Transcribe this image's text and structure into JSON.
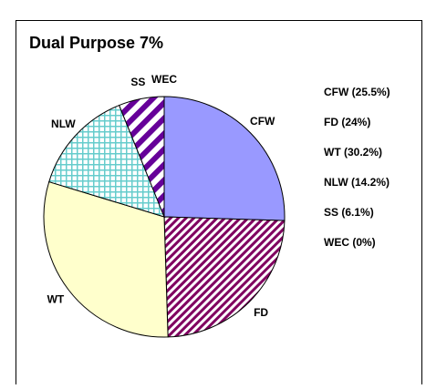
{
  "chart_data": {
    "type": "pie",
    "title": "Dual Purpose 7%",
    "categories": [
      "CFW",
      "FD",
      "WT",
      "NLW",
      "SS",
      "WEC"
    ],
    "values": [
      25.5,
      24,
      30.2,
      14.2,
      6.1,
      0
    ],
    "legend_labels": [
      "CFW (25.5%)",
      "FD (24%)",
      "WT (30.2%)",
      "NLW (14.2%)",
      "SS (6.1%)",
      "WEC (0%)"
    ],
    "colors": [
      "#9999ff",
      "#800060",
      "#ffffcc",
      "#66cccc",
      "#660099",
      "#ffffff"
    ],
    "patterns": [
      "solid",
      "diagonal",
      "solid",
      "grid",
      "stripes",
      "solid"
    ]
  }
}
